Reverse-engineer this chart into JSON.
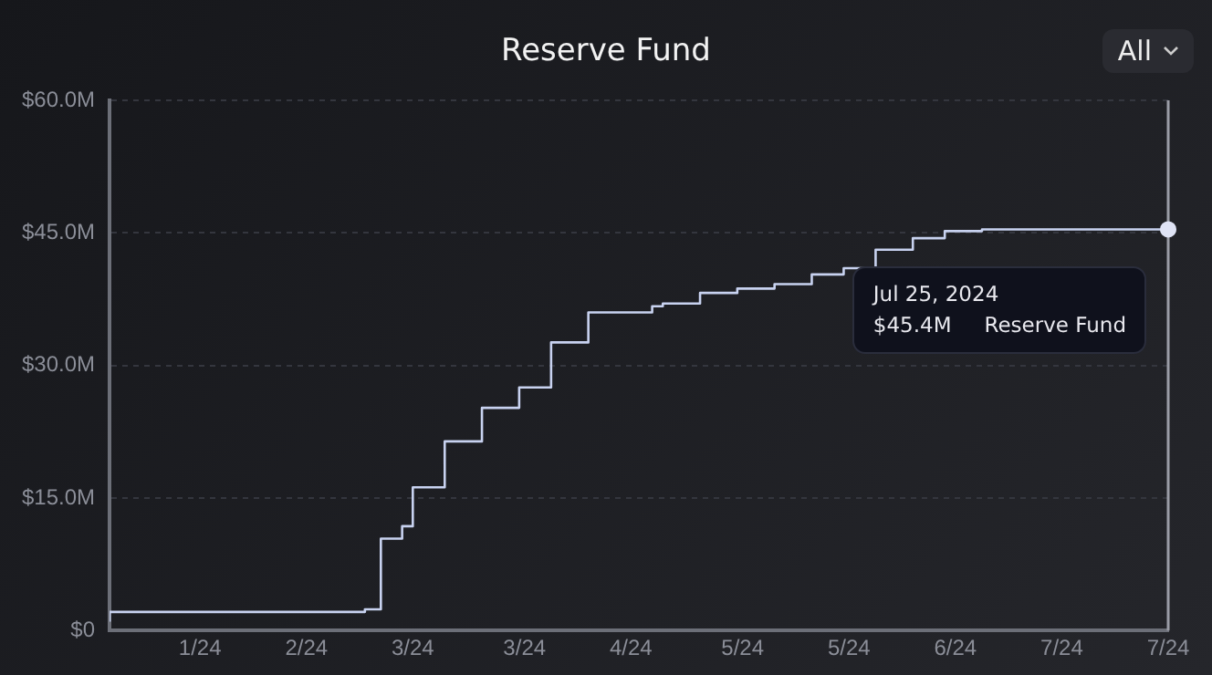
{
  "chart_data": {
    "type": "step",
    "title": "Reserve Fund",
    "x": [
      "2024-01-08",
      "2024-02-25",
      "2024-02-28",
      "2024-03-03",
      "2024-03-05",
      "2024-03-11",
      "2024-03-18",
      "2024-03-25",
      "2024-03-31",
      "2024-04-07",
      "2024-04-19",
      "2024-04-21",
      "2024-04-28",
      "2024-05-05",
      "2024-05-12",
      "2024-05-19",
      "2024-05-25",
      "2024-05-31",
      "2024-06-07",
      "2024-06-13",
      "2024-06-20",
      "2024-07-25"
    ],
    "series": [
      {
        "color": "#c8d2f0",
        "values": [
          1.0,
          2.1,
          2.4,
          10.4,
          11.8,
          16.2,
          21.4,
          25.2,
          27.5,
          32.6,
          36.0,
          36.7,
          37.0,
          38.2,
          38.7,
          39.2,
          40.3,
          41.0,
          43.1,
          44.4,
          45.2,
          45.4
        ]
      }
    ],
    "xlim": [
      "2024-01-08",
      "2024-07-25"
    ],
    "xticks": [
      {
        "value": "2024-01-25",
        "label": "1/24"
      },
      {
        "value": "2024-02-14",
        "label": "2/24"
      },
      {
        "value": "2024-03-05",
        "label": "3/24"
      },
      {
        "value": "2024-03-26",
        "label": "3/24"
      },
      {
        "value": "2024-04-15",
        "label": "4/24"
      },
      {
        "value": "2024-05-06",
        "label": "5/24"
      },
      {
        "value": "2024-05-26",
        "label": "5/24"
      },
      {
        "value": "2024-06-15",
        "label": "6/24"
      },
      {
        "value": "2024-07-05",
        "label": "7/24"
      },
      {
        "value": "2024-07-25",
        "label": "7/24"
      }
    ],
    "ylim": [
      0,
      60
    ],
    "yticks": [
      {
        "value": 0,
        "label": "$0"
      },
      {
        "value": 15,
        "label": "$15.0M"
      },
      {
        "value": 30,
        "label": "$30.0M"
      },
      {
        "value": 45,
        "label": "$45.0M"
      },
      {
        "value": 60,
        "label": "$60.0M"
      }
    ],
    "grid": "y",
    "legend": false,
    "marker": "none",
    "annotations": [
      "All",
      "Jul 25, 2024",
      "$45.4M",
      "Reserve Fund"
    ]
  }
}
